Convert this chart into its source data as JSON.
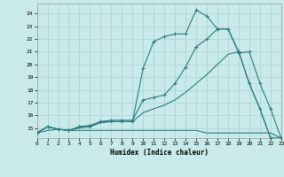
{
  "xlabel": "Humidex (Indice chaleur)",
  "background_color": "#c8eaea",
  "grid_color": "#b0cfcf",
  "line_color": "#2d7d7d",
  "xlim": [
    0,
    23
  ],
  "ylim": [
    14.2,
    24.8
  ],
  "xticks": [
    0,
    1,
    2,
    3,
    4,
    5,
    6,
    7,
    8,
    9,
    10,
    11,
    12,
    13,
    14,
    15,
    16,
    17,
    18,
    19,
    20,
    21,
    22,
    23
  ],
  "yticks": [
    15,
    16,
    17,
    18,
    19,
    20,
    21,
    22,
    23,
    24
  ],
  "yticklabels": [
    "15",
    "16",
    "17",
    "18",
    "19",
    "20",
    "21",
    "22",
    "23",
    "24"
  ],
  "line1_x": [
    0,
    1,
    2,
    3,
    4,
    5,
    6,
    7,
    8,
    9,
    10,
    11,
    12,
    13,
    14,
    15,
    16,
    17,
    18,
    19,
    20,
    21,
    22,
    23
  ],
  "line1_y": [
    14.6,
    15.1,
    14.9,
    14.8,
    15.1,
    15.1,
    15.5,
    15.5,
    15.5,
    15.5,
    19.7,
    21.8,
    22.2,
    22.4,
    22.4,
    24.3,
    23.8,
    22.8,
    22.8,
    20.9,
    21.0,
    18.5,
    16.5,
    14.2
  ],
  "line2_x": [
    0,
    1,
    2,
    3,
    4,
    5,
    6,
    7,
    8,
    9,
    10,
    11,
    12,
    13,
    14,
    15,
    16,
    17,
    18,
    19,
    20,
    21,
    22,
    23
  ],
  "line2_y": [
    14.6,
    15.1,
    14.9,
    14.8,
    15.1,
    15.2,
    15.5,
    15.6,
    15.6,
    15.6,
    17.2,
    17.4,
    17.6,
    18.5,
    19.8,
    21.4,
    22.0,
    22.8,
    22.8,
    21.0,
    18.5,
    16.5,
    14.2,
    14.2
  ],
  "line3_x": [
    0,
    1,
    2,
    3,
    4,
    5,
    6,
    7,
    8,
    9,
    10,
    11,
    12,
    13,
    14,
    15,
    16,
    17,
    18,
    19,
    20,
    21,
    22,
    23
  ],
  "line3_y": [
    14.6,
    15.1,
    14.9,
    14.8,
    15.0,
    15.1,
    15.4,
    15.5,
    15.5,
    15.5,
    16.2,
    16.5,
    16.8,
    17.2,
    17.8,
    18.5,
    19.2,
    20.0,
    20.8,
    21.0,
    18.5,
    16.5,
    14.2,
    14.2
  ],
  "line4_x": [
    0,
    1,
    2,
    3,
    4,
    5,
    6,
    7,
    8,
    9,
    10,
    11,
    12,
    13,
    14,
    15,
    16,
    17,
    18,
    19,
    20,
    21,
    22,
    23
  ],
  "line4_y": [
    14.6,
    14.8,
    14.9,
    14.8,
    14.8,
    14.8,
    14.8,
    14.8,
    14.8,
    14.8,
    14.8,
    14.8,
    14.8,
    14.8,
    14.8,
    14.8,
    14.6,
    14.6,
    14.6,
    14.6,
    14.6,
    14.6,
    14.6,
    14.2
  ],
  "figsize": [
    3.2,
    2.0
  ],
  "dpi": 100
}
